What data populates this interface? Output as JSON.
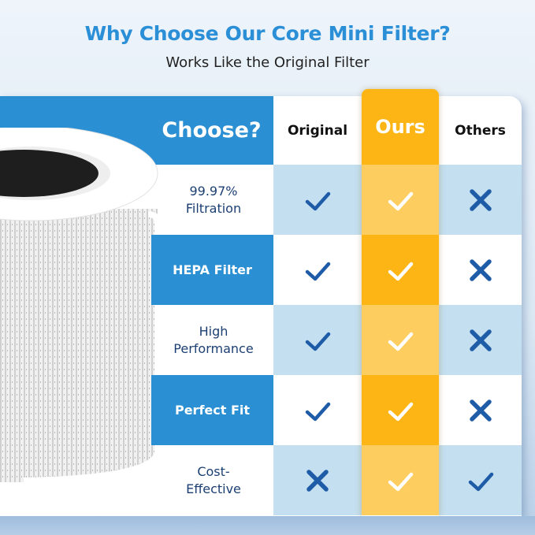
{
  "title": "Why Choose Our Core Mini Filter?",
  "subtitle": "Works Like the Original Filter",
  "table": {
    "corner_label": "Choose?",
    "columns": [
      "Original",
      "Ours",
      "Others"
    ],
    "rows": [
      {
        "label_line1": "99.97%",
        "label_line2": "Filtration",
        "values": [
          "check",
          "check",
          "cross"
        ]
      },
      {
        "label_line1": "HEPA Filter",
        "label_line2": "",
        "values": [
          "check",
          "check",
          "cross"
        ]
      },
      {
        "label_line1": "High",
        "label_line2": "Performance",
        "values": [
          "check",
          "check",
          "cross"
        ]
      },
      {
        "label_line1": "Perfect Fit",
        "label_line2": "",
        "values": [
          "check",
          "check",
          "cross"
        ]
      },
      {
        "label_line1": "Cost-",
        "label_line2": "Effective",
        "values": [
          "cross",
          "check",
          "check"
        ]
      }
    ]
  },
  "colors": {
    "accent_blue": "#2b8fd3",
    "ours_orange": "#fdb515",
    "mark_blue": "#1f5ca8"
  },
  "icons": {
    "check": "check-icon",
    "cross": "cross-icon",
    "image": "air-filter-product-image"
  }
}
